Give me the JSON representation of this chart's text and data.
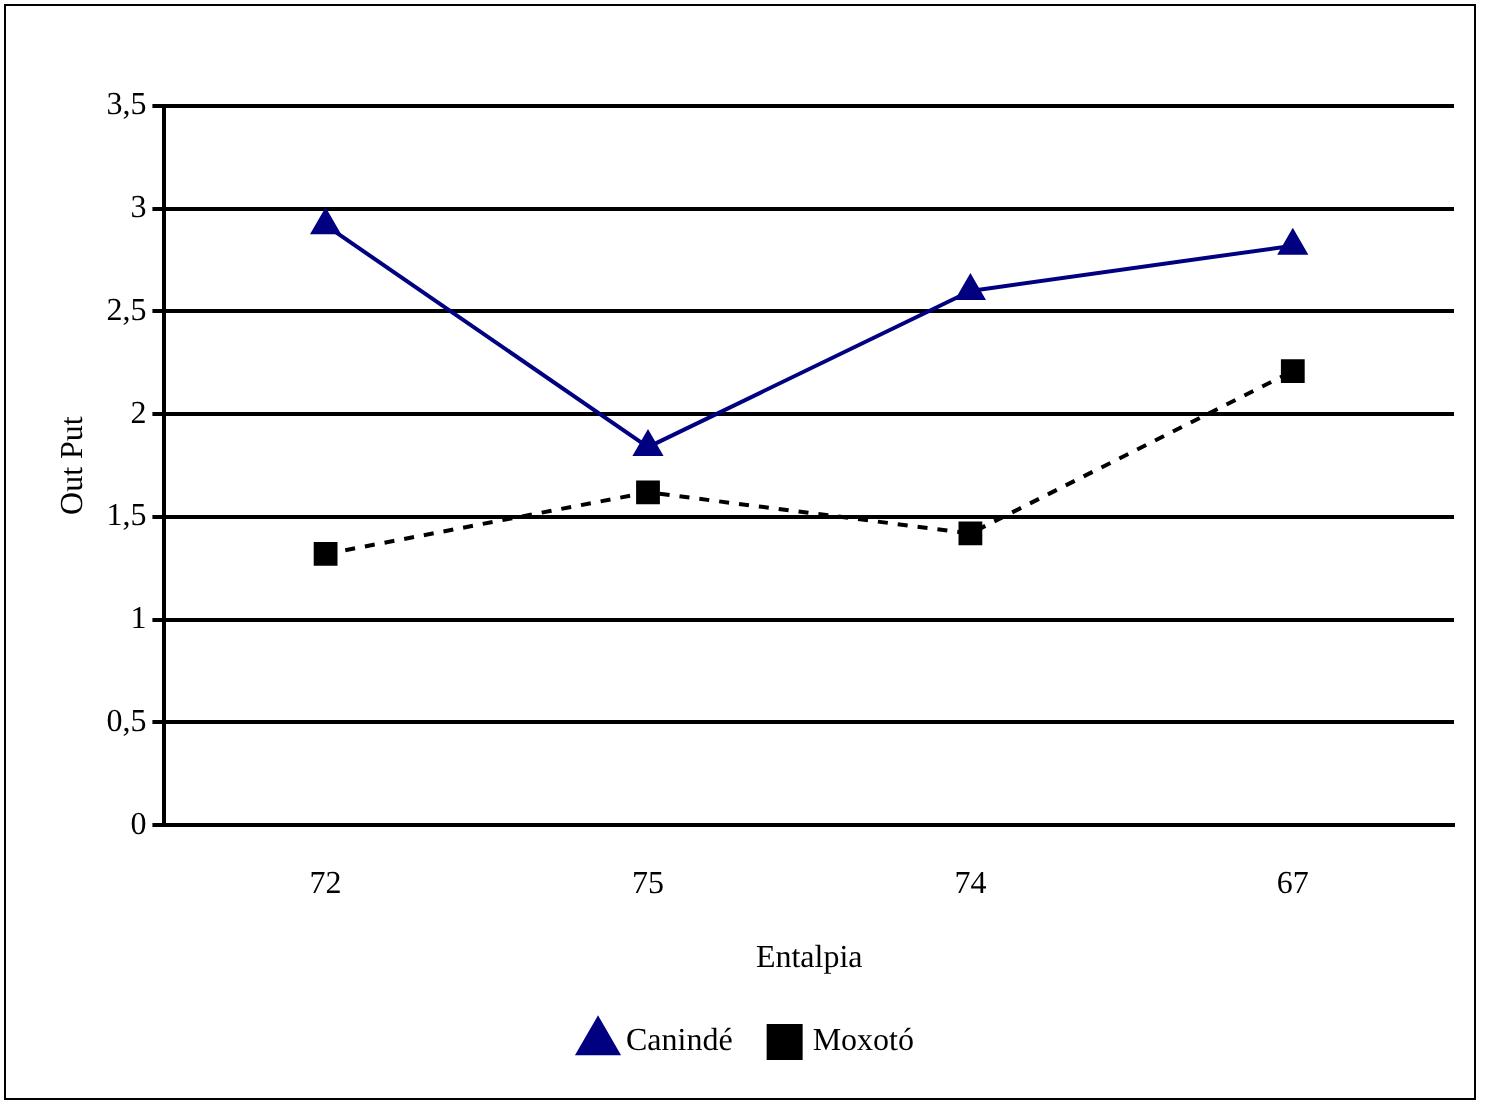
{
  "chart_data": {
    "type": "line",
    "xlabel": "Entalpia",
    "ylabel": "Out Put",
    "categories": [
      "72",
      "75",
      "74",
      "67"
    ],
    "series": [
      {
        "name": "Canindé",
        "color": "#000080",
        "values": [
          2.92,
          1.84,
          2.6,
          2.82
        ],
        "marker": "triangle",
        "line_style": "solid"
      },
      {
        "name": "Moxotó",
        "color": "#000000",
        "values": [
          1.32,
          1.62,
          1.42,
          2.21
        ],
        "marker": "square",
        "line_style": "dashed"
      }
    ],
    "ylim": [
      0,
      3.5
    ],
    "yticks": [
      0,
      {
        "value": 0.5,
        "label": "0,5"
      },
      1,
      {
        "value": 1.5,
        "label": "1,5"
      },
      2,
      {
        "value": 2.5,
        "label": "2,5"
      },
      3,
      {
        "value": 3.5,
        "label": "3,5"
      }
    ],
    "grid": "y",
    "legend": "bottom"
  }
}
